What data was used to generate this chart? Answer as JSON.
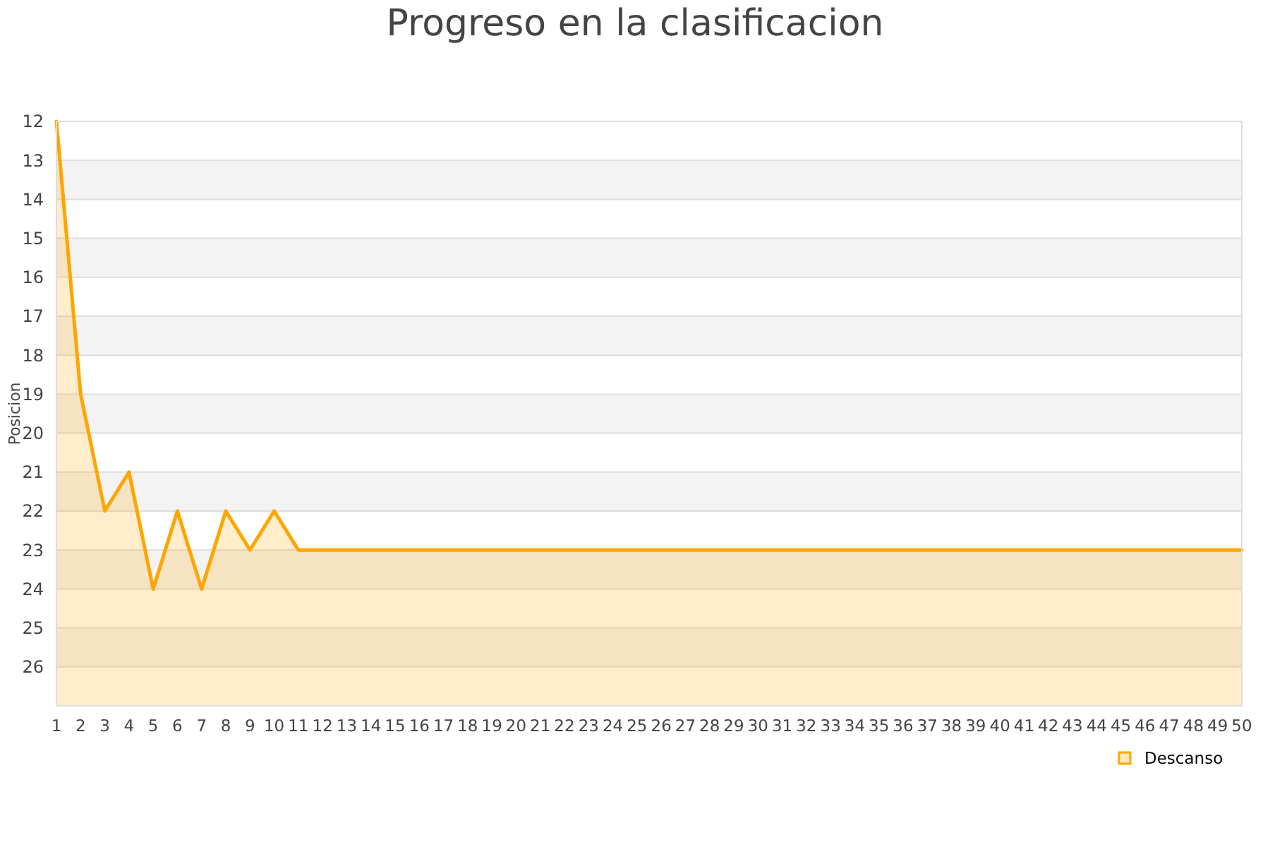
{
  "chart_data": {
    "type": "line",
    "title": "Progreso en la clasificacion",
    "ylabel": "Posicion",
    "x": [
      1,
      2,
      3,
      4,
      5,
      6,
      7,
      8,
      9,
      10,
      11,
      12,
      13,
      14,
      15,
      16,
      17,
      18,
      19,
      20,
      21,
      22,
      23,
      24,
      25,
      26,
      27,
      28,
      29,
      30,
      31,
      32,
      33,
      34,
      35,
      36,
      37,
      38,
      39,
      40,
      41,
      42,
      43,
      44,
      45,
      46,
      47,
      48,
      49,
      50
    ],
    "xlim": [
      1,
      50
    ],
    "xticks": [
      1,
      2,
      3,
      4,
      5,
      6,
      7,
      8,
      9,
      10,
      11,
      12,
      13,
      14,
      15,
      16,
      17,
      18,
      19,
      20,
      21,
      22,
      23,
      24,
      25,
      26,
      27,
      28,
      29,
      30,
      31,
      32,
      33,
      34,
      35,
      36,
      37,
      38,
      39,
      40,
      41,
      42,
      43,
      44,
      45,
      46,
      47,
      48,
      49,
      50
    ],
    "ylim": [
      27,
      12
    ],
    "yticks": [
      12,
      13,
      14,
      15,
      16,
      17,
      18,
      19,
      20,
      21,
      22,
      23,
      24,
      25,
      26
    ],
    "series": [
      {
        "name": "Descanso",
        "color": "#ffa500",
        "values": [
          12,
          19,
          22,
          21,
          24,
          22,
          24,
          22,
          23,
          22,
          23,
          23,
          23,
          23,
          23,
          23,
          23,
          23,
          23,
          23,
          23,
          23,
          23,
          23,
          23,
          23,
          23,
          23,
          23,
          23,
          23,
          23,
          23,
          23,
          23,
          23,
          23,
          23,
          23,
          23,
          23,
          23,
          23,
          23,
          23,
          23,
          23,
          23,
          23,
          23
        ],
        "upper": [
          12,
          19,
          22,
          21,
          24,
          22,
          24,
          22,
          23,
          22,
          23,
          23,
          23,
          23,
          23,
          23,
          23,
          23,
          23,
          23,
          23,
          23,
          23,
          23,
          23,
          23,
          23,
          23,
          23,
          23,
          23,
          23,
          23,
          23,
          23,
          23,
          23,
          23,
          23,
          23,
          23,
          23,
          23,
          23,
          23,
          23,
          23,
          23,
          23,
          23
        ],
        "lower": [
          27,
          27,
          27,
          27,
          27,
          27,
          27,
          27,
          27,
          27,
          27,
          27,
          27,
          27,
          27,
          27,
          27,
          27,
          27,
          27,
          27,
          27,
          27,
          27,
          27,
          27,
          27,
          27,
          27,
          27,
          27,
          27,
          27,
          27,
          27,
          27,
          27,
          27,
          27,
          27,
          27,
          27,
          27,
          27,
          27,
          27,
          27,
          27,
          27,
          27
        ]
      }
    ],
    "grid": "y",
    "legend": "bottom right",
    "marker": "none",
    "line_style": "solid"
  }
}
